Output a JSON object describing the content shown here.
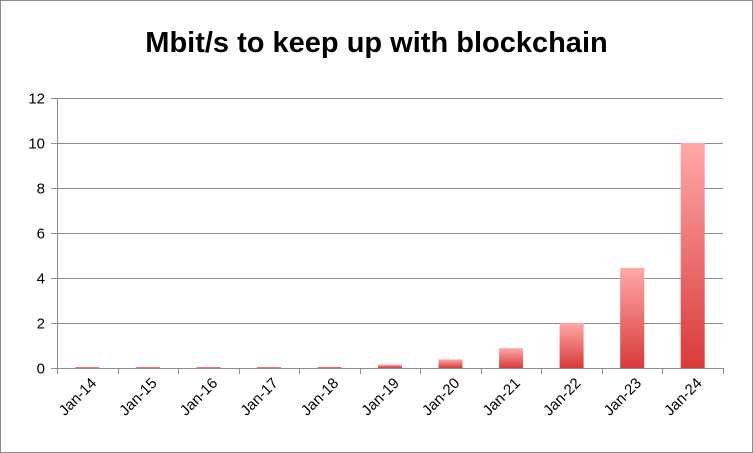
{
  "chart_data": {
    "type": "bar",
    "title": "Mbit/s to keep up with blockchain",
    "xlabel": "",
    "ylabel": "",
    "categories": [
      "Jan-14",
      "Jan-15",
      "Jan-16",
      "Jan-17",
      "Jan-18",
      "Jan-19",
      "Jan-20",
      "Jan-21",
      "Jan-22",
      "Jan-23",
      "Jan-24"
    ],
    "values": [
      0.01,
      0.01,
      0.01,
      0.02,
      0.05,
      0.15,
      0.38,
      0.88,
      2.0,
      4.45,
      10.0
    ],
    "ylim": [
      0,
      12
    ],
    "yticks": [
      0,
      2,
      4,
      6,
      8,
      10,
      12
    ],
    "grid": true,
    "legend": "none",
    "colors": {
      "bar_top": "#ffa8a8",
      "bar_bottom": "#d93a3a",
      "grid": "#8c8c8c",
      "axis": "#8c8c8c"
    }
  }
}
